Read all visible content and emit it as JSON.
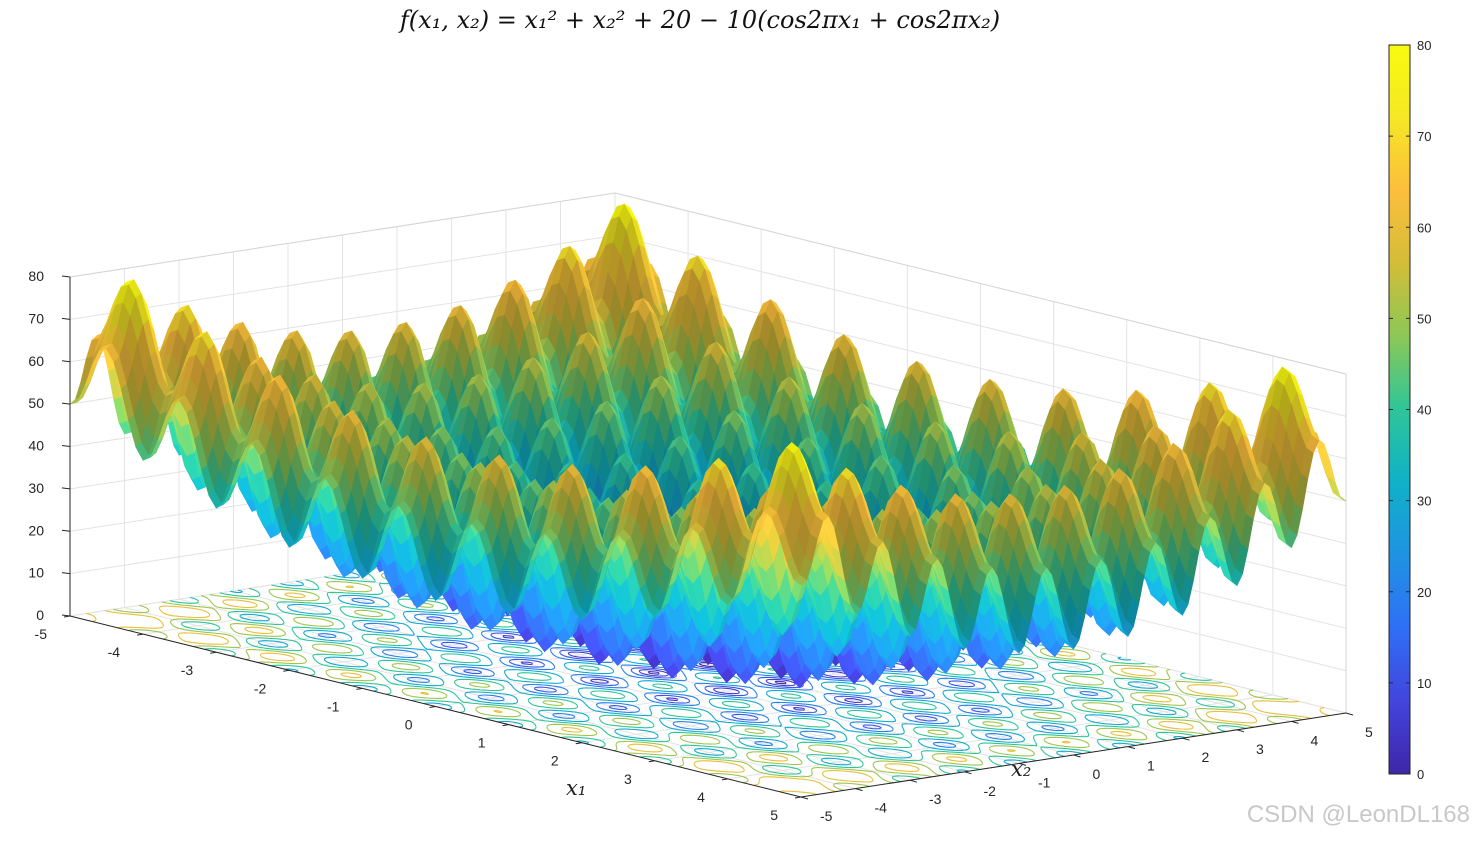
{
  "chart_data": {
    "type": "surface",
    "title": "f(x₁, x₂) = x₁² + x₂² + 20 − 10(cos2πx₁ + cos2πx₂)",
    "function": "x1^2 + x2^2 + 20 - 10*(cos(2*pi*x1) + cos(2*pi*x2))",
    "xlabel": "x₁",
    "ylabel": "x₂",
    "zlabel": "",
    "xlim": [
      -5,
      5
    ],
    "ylim": [
      -5,
      5
    ],
    "zlim": [
      0,
      80
    ],
    "x_ticks": [
      "-5",
      "-4",
      "-3",
      "-2",
      "-1",
      "0",
      "1",
      "2",
      "3",
      "4",
      "5"
    ],
    "y_ticks": [
      "-5",
      "-4",
      "-3",
      "-2",
      "-1",
      "0",
      "1",
      "2",
      "3",
      "4",
      "5"
    ],
    "z_ticks": [
      "0",
      "10",
      "20",
      "30",
      "40",
      "50",
      "60",
      "70",
      "80"
    ],
    "colorbar": {
      "min": 0,
      "max": 80,
      "ticks": [
        "0",
        "10",
        "20",
        "30",
        "40",
        "50",
        "60",
        "70",
        "80"
      ]
    },
    "colormap": "parula",
    "contour_levels": [
      2,
      6,
      12,
      20,
      30,
      40,
      50,
      60
    ],
    "grid": true,
    "projection": "3D surface with contour plot on base plane"
  },
  "colors": {
    "parula": [
      "#3e26a8",
      "#4245dd",
      "#2f6ff6",
      "#1f93e2",
      "#0fb1c8",
      "#2ec598",
      "#8bc857",
      "#d3bd38",
      "#fcbe3c",
      "#f5e725",
      "#f9fb0e"
    ]
  },
  "watermark": "CSDN @LeonDL168"
}
